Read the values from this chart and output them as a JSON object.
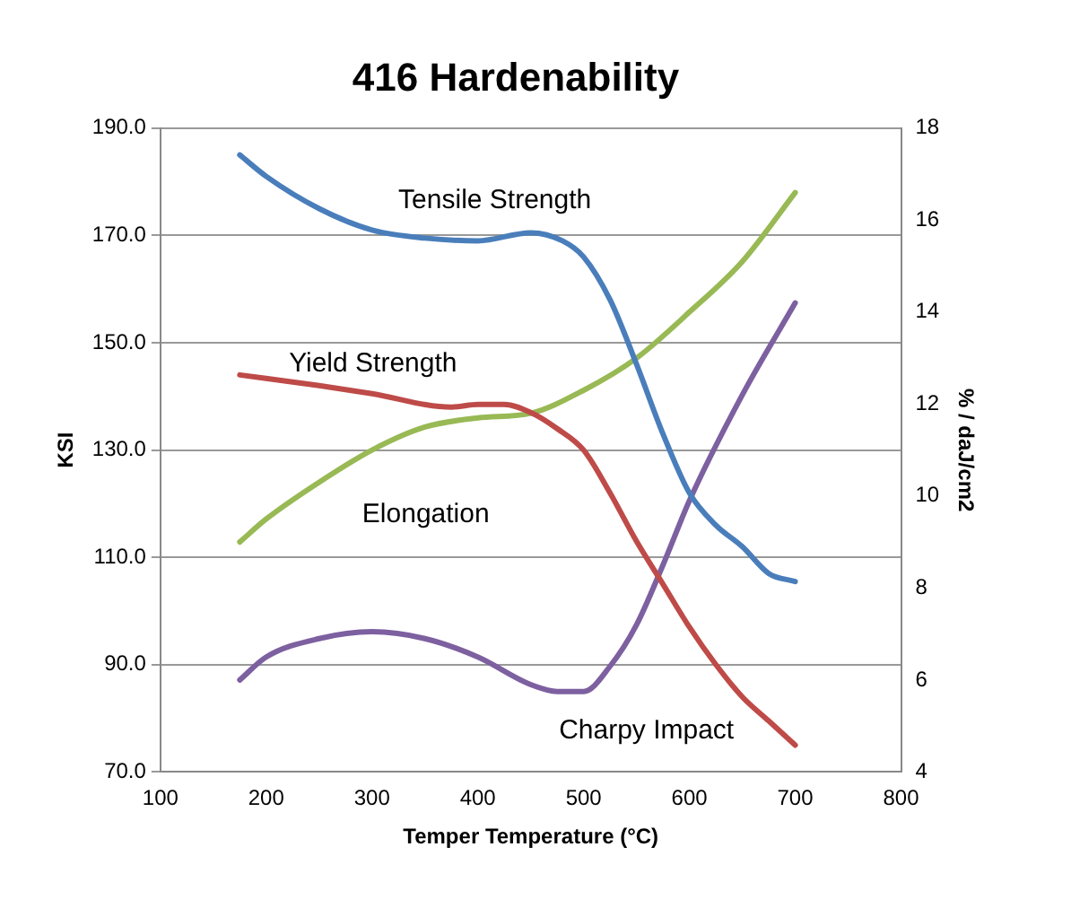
{
  "chart_data": {
    "type": "line",
    "title": "416 Hardenability",
    "xlabel": "Temper Temperature (°C)",
    "ylabel": "KSI",
    "y2label": "% / daJ/cm2",
    "xlim": [
      100,
      800
    ],
    "xticks": [
      100,
      200,
      300,
      400,
      500,
      600,
      700,
      800
    ],
    "ylim": [
      70,
      190
    ],
    "yticks": [
      {
        "value": 70,
        "label": "70.0"
      },
      {
        "value": 90,
        "label": "90.0"
      },
      {
        "value": 110,
        "label": "110.0"
      },
      {
        "value": 130,
        "label": "130.0"
      },
      {
        "value": 150,
        "label": "150.0"
      },
      {
        "value": 170,
        "label": "170.0"
      },
      {
        "value": 190,
        "label": "190.0"
      }
    ],
    "y2lim": [
      4,
      18
    ],
    "y2ticks": [
      4,
      6,
      8,
      10,
      12,
      14,
      16,
      18
    ],
    "grid": "y",
    "legend": false,
    "marker": "none",
    "line_style": "solid",
    "series": [
      {
        "name": "Tensile Strength",
        "color": "#4a7ebb",
        "x": [
          175,
          200,
          250,
          300,
          350,
          400,
          450,
          480,
          500,
          525,
          550,
          575,
          600,
          625,
          650,
          675,
          700
        ],
        "values": [
          185,
          181,
          175,
          171,
          169.5,
          169,
          170.5,
          169,
          166,
          158,
          146,
          133,
          122,
          116,
          112,
          107,
          105.5
        ]
      },
      {
        "name": "Yield Strength",
        "color": "#be4b48",
        "x": [
          175,
          250,
          300,
          375,
          400,
          425,
          450,
          475,
          500,
          525,
          550,
          575,
          600,
          625,
          650,
          675,
          700
        ],
        "values": [
          144,
          142,
          140.5,
          138,
          138.5,
          138.5,
          137,
          134,
          130,
          122,
          113,
          105,
          97,
          90,
          84,
          79.5,
          75
        ]
      },
      {
        "name": "Elongation",
        "color": "#98b954",
        "axis": "y2",
        "x": [
          175,
          200,
          250,
          300,
          350,
          400,
          450,
          500,
          550,
          600,
          650,
          700
        ],
        "values": [
          9.0,
          9.5,
          10.3,
          11.0,
          11.5,
          11.7,
          11.8,
          12.3,
          13.0,
          14.0,
          15.1,
          16.6
        ]
      },
      {
        "name": "Charpy Impact",
        "color": "#7d60a0",
        "axis": "y2",
        "x": [
          175,
          200,
          250,
          300,
          350,
          400,
          450,
          475,
          500,
          525,
          550,
          575,
          600,
          650,
          700
        ],
        "values": [
          6.0,
          6.5,
          6.9,
          7.05,
          6.9,
          6.5,
          5.9,
          5.75,
          5.75,
          6.3,
          7.2,
          8.5,
          9.9,
          12.2,
          14.2
        ]
      }
    ]
  }
}
